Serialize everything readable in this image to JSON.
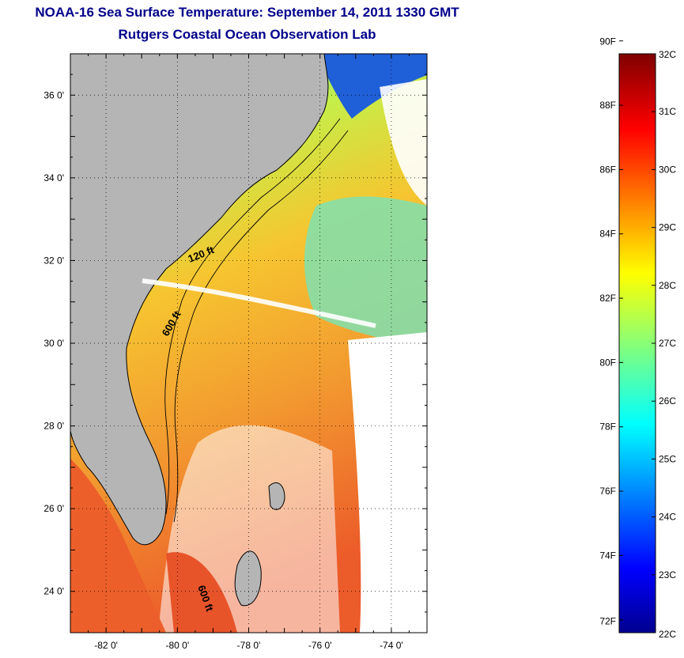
{
  "title": "NOAA-16 Sea Surface Temperature:  September 14, 2011 1330 GMT",
  "subtitle": "Rutgers Coastal Ocean Observation Lab",
  "map": {
    "lon_range": [
      -83,
      -73
    ],
    "lat_range": [
      23,
      37
    ],
    "lat_ticks": [
      "36 0'",
      "34 0'",
      "32 0'",
      "30 0'",
      "28 0'",
      "26 0'",
      "24 0'"
    ],
    "lon_ticks": [
      "-82 0'",
      "-80 0'",
      "-78 0'",
      "-76 0'",
      "-74 0'"
    ],
    "land_color": "#b5b5b5",
    "contour_labels": [
      "120 ft",
      "600 ft",
      "600 ft"
    ]
  },
  "colorbar": {
    "range_c": [
      22,
      32
    ],
    "celsius_labels": [
      "32C",
      "31C",
      "30C",
      "29C",
      "28C",
      "27C",
      "26C",
      "25C",
      "24C",
      "23C",
      "22C"
    ],
    "fahrenheit_labels": [
      "90F",
      "88F",
      "86F",
      "84F",
      "82F",
      "80F",
      "78F",
      "76F",
      "74F",
      "72F"
    ]
  }
}
